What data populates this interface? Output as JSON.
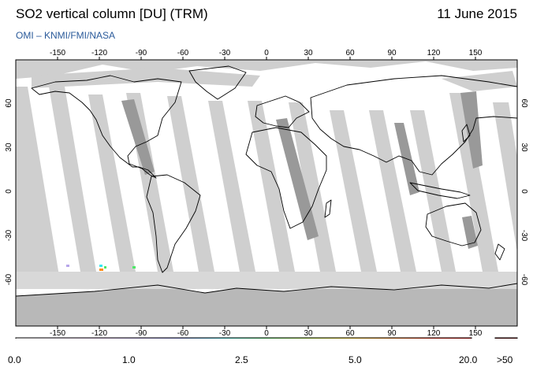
{
  "header": {
    "title": "SO2 vertical column [DU] (TRM)",
    "date": "11 June 2015",
    "credit": "OMI  –  KNMI/FMI/NASA"
  },
  "map": {
    "lon_ticks": [
      "-150",
      "-120",
      "-90",
      "-60",
      "-30",
      "0",
      "30",
      "60",
      "90",
      "120",
      "150"
    ],
    "lat_ticks_left": [
      "60",
      "30",
      "0",
      "-30",
      "-60"
    ],
    "lat_ticks_right": [
      "60",
      "30",
      "0",
      "-30",
      "-60"
    ],
    "colors": {
      "land_gap": "#999999",
      "ocean_gap": "#cfcfcf",
      "antarctica": "#b8b8b8",
      "measured": "#ffffff",
      "coast": "#000000"
    }
  },
  "colorbar": {
    "labels": [
      "0.0",
      "1.0",
      "2.5",
      "5.0",
      "20.0"
    ],
    "overflow_label": ">50",
    "overflow_color": "#5a0000",
    "gradient_colors": [
      "#ffffff",
      "#f4e6f8",
      "#e4c4f0",
      "#b7a6ea",
      "#7f8ae6",
      "#38e8f0",
      "#4ee868",
      "#a6e628",
      "#ffd810",
      "#ff8c10",
      "#ff2a10",
      "#cc0000"
    ]
  }
}
